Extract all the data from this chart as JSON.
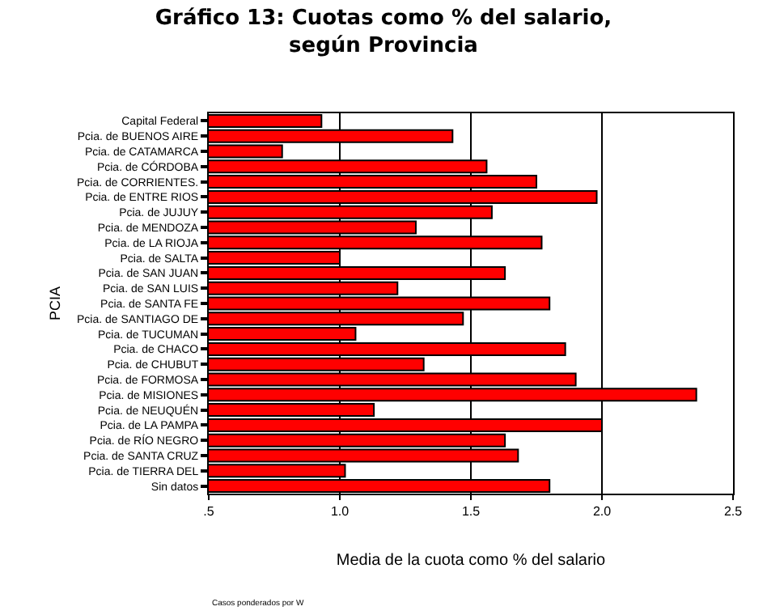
{
  "chart_data": {
    "type": "bar",
    "orientation": "horizontal",
    "title": "Gráfico 13: Cuotas como % del salario, según Provincia",
    "xlabel": "Media de la cuota como % del salario",
    "ylabel": "PCIA",
    "categories": [
      "Capital Federal",
      "Pcia. de BUENOS AIRE",
      "Pcia. de CATAMARCA",
      "Pcia. de CÓRDOBA",
      "Pcia. de CORRIENTES.",
      "Pcia. de ENTRE RIOS",
      "Pcia. de JUJUY",
      "Pcia. de MENDOZA",
      "Pcia. de LA RIOJA",
      "Pcia. de SALTA",
      "Pcia. de SAN JUAN",
      "Pcia. de SAN LUIS",
      "Pcia. de SANTA FE",
      "Pcia. de SANTIAGO DE",
      "Pcia. de TUCUMAN",
      "Pcia. de CHACO",
      "Pcia. de CHUBUT",
      "Pcia. de FORMOSA",
      "Pcia. de MISIONES",
      "Pcia. de NEUQUÉN",
      "Pcia. de LA PAMPA",
      "Pcia. de RÍO NEGRO",
      "Pcia. de SANTA CRUZ",
      "Pcia. de TIERRA DEL",
      "Sin datos"
    ],
    "values": [
      0.93,
      1.43,
      0.78,
      1.56,
      1.75,
      1.98,
      1.58,
      1.29,
      1.77,
      1.0,
      1.63,
      1.22,
      1.8,
      1.47,
      1.06,
      1.86,
      1.32,
      1.9,
      2.36,
      1.13,
      2.0,
      1.63,
      1.68,
      1.02,
      1.8
    ],
    "color": "#ff0000",
    "xlim": [
      0.5,
      2.5
    ],
    "xticks": [
      {
        "value": 0.5,
        "label": ".5"
      },
      {
        "value": 1.0,
        "label": "1.0"
      },
      {
        "value": 1.5,
        "label": "1.5"
      },
      {
        "value": 2.0,
        "label": "2.0"
      },
      {
        "value": 2.5,
        "label": "2.5"
      }
    ],
    "grid": "x",
    "legend": false,
    "annotations": [
      "Casos ponderados por W"
    ]
  }
}
